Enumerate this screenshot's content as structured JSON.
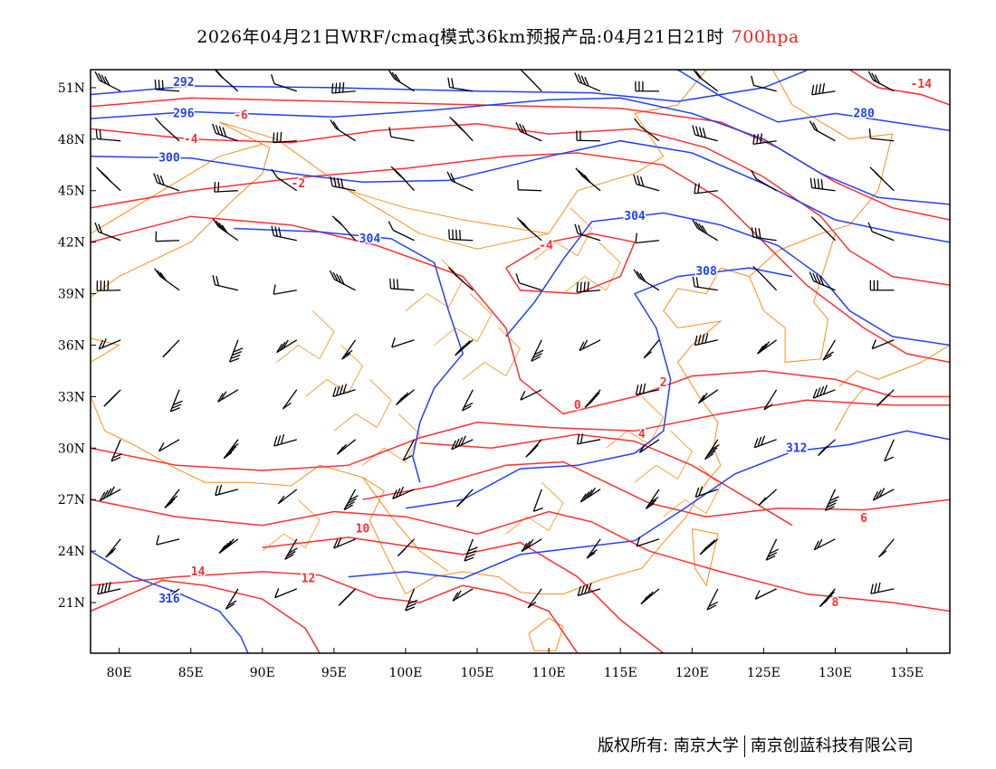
{
  "title": {
    "text": "2026年04月21日WRF/cmaq模式36km预报产品:04月21日21时",
    "level": "700hpa"
  },
  "footer": {
    "left": "版权所有: 南京大学",
    "right": "南京创蓝科技有限公司"
  },
  "colors": {
    "temperature": "#ff3030",
    "height": "#2040ff",
    "border": "#ff8c1a",
    "barb": "#000000"
  },
  "axes": {
    "lon_ticks": [
      "80E",
      "85E",
      "90E",
      "95E",
      "100E",
      "105E",
      "110E",
      "115E",
      "120E",
      "125E",
      "130E",
      "135E"
    ],
    "lon_values": [
      80,
      85,
      90,
      95,
      100,
      105,
      110,
      115,
      120,
      125,
      130,
      135
    ],
    "lat_ticks": [
      "51N",
      "48N",
      "45N",
      "42N",
      "39N",
      "36N",
      "33N",
      "30N",
      "27N",
      "24N",
      "21N"
    ],
    "lat_values": [
      51,
      48,
      45,
      42,
      39,
      36,
      33,
      30,
      27,
      24,
      21
    ],
    "lon_range": [
      78,
      138
    ],
    "lat_range": [
      18.05,
      52.05
    ]
  },
  "chart_data": {
    "type": "contour-map",
    "height_contours": [
      {
        "label": "292",
        "points": [
          [
            78,
            50.6
          ],
          [
            85,
            51.1
          ],
          [
            95,
            51
          ],
          [
            105,
            50.8
          ],
          [
            113,
            50.7
          ],
          [
            119,
            50.2
          ],
          [
            125,
            51
          ],
          [
            128,
            52
          ]
        ],
        "label_at": [
          84.5,
          51.3
        ]
      },
      {
        "label": "296",
        "points": [
          [
            78,
            49.2
          ],
          [
            85,
            49.6
          ],
          [
            95,
            49.3
          ],
          [
            102,
            49.7
          ],
          [
            110,
            50.3
          ],
          [
            115,
            50.4
          ],
          [
            120,
            49.5
          ],
          [
            125,
            48
          ],
          [
            129,
            46
          ],
          [
            133,
            44.6
          ],
          [
            138,
            44.2
          ]
        ],
        "label_at": [
          84.5,
          49.5
        ]
      },
      {
        "label": "300",
        "points": [
          [
            78,
            47
          ],
          [
            85,
            46.9
          ],
          [
            92,
            46
          ],
          [
            97,
            45.5
          ],
          [
            103,
            45.6
          ],
          [
            110,
            47
          ],
          [
            115,
            47.9
          ],
          [
            120,
            47.2
          ],
          [
            125,
            45.4
          ],
          [
            130,
            43.3
          ],
          [
            134,
            42.6
          ],
          [
            138,
            42
          ]
        ],
        "label_at": [
          83.5,
          46.9
        ]
      },
      {
        "label": "304",
        "points": [
          [
            88,
            42.8
          ],
          [
            94,
            42.6
          ],
          [
            99,
            42.2
          ],
          [
            102,
            40.8
          ],
          [
            103,
            38
          ],
          [
            104,
            35.5
          ],
          [
            102,
            33.5
          ],
          [
            101,
            31.5
          ],
          [
            100.5,
            29.5
          ],
          [
            101,
            28
          ]
        ],
        "label_at": [
          97.5,
          42.2
        ]
      },
      {
        "label": "304",
        "points": [
          [
            107,
            36.5
          ],
          [
            109,
            38.5
          ],
          [
            111,
            41
          ],
          [
            113,
            43.2
          ],
          [
            118,
            43.7
          ],
          [
            122,
            43
          ],
          [
            126,
            41.8
          ],
          [
            129,
            40
          ],
          [
            131,
            38
          ],
          [
            134,
            36.5
          ],
          [
            138,
            36
          ]
        ],
        "label_at": [
          116,
          43.5
        ]
      },
      {
        "label": "308",
        "points": [
          [
            100,
            26.5
          ],
          [
            104,
            27
          ],
          [
            108,
            28.8
          ],
          [
            112,
            29
          ],
          [
            116,
            29.7
          ],
          [
            118,
            31
          ],
          [
            118.5,
            34
          ],
          [
            117.5,
            37
          ],
          [
            116,
            39
          ],
          [
            119,
            40
          ],
          [
            124,
            40.5
          ],
          [
            127,
            40
          ]
        ],
        "label_at": [
          121,
          40.3
        ]
      },
      {
        "label": "312",
        "points": [
          [
            96,
            22.5
          ],
          [
            100,
            22.8
          ],
          [
            104,
            22.4
          ],
          [
            108,
            23.8
          ],
          [
            112,
            24.2
          ],
          [
            116,
            24.6
          ],
          [
            119.5,
            26.5
          ],
          [
            123,
            28.5
          ],
          [
            127,
            29.8
          ],
          [
            131,
            30.2
          ],
          [
            135,
            31
          ],
          [
            138,
            30.5
          ]
        ],
        "label_at": [
          127.3,
          30
        ]
      },
      {
        "label": "316",
        "points": [
          [
            78,
            24
          ],
          [
            81,
            22.5
          ],
          [
            84,
            21.6
          ],
          [
            87,
            20.5
          ],
          [
            88.5,
            19
          ],
          [
            89,
            18.05
          ]
        ],
        "label_at": [
          83.5,
          21.2
        ]
      },
      {
        "label": "280",
        "points": [
          [
            119,
            52.05
          ],
          [
            122,
            50.5
          ],
          [
            126,
            49
          ],
          [
            130,
            49.5
          ],
          [
            134,
            49
          ],
          [
            138,
            48.5
          ]
        ],
        "label_at": [
          132,
          49.5
        ]
      }
    ],
    "temperature_contours": [
      {
        "label": "-14",
        "points": [
          [
            131,
            52.05
          ],
          [
            133,
            51
          ],
          [
            136,
            50.6
          ],
          [
            138,
            50
          ]
        ],
        "label_at": [
          136,
          51.2
        ]
      },
      {
        "label": "-6",
        "points": [
          [
            78,
            49.9
          ],
          [
            85,
            50.4
          ],
          [
            95,
            50.2
          ],
          [
            105,
            50
          ],
          [
            115,
            49.8
          ],
          [
            122,
            49
          ],
          [
            126,
            47.5
          ],
          [
            130,
            45.5
          ],
          [
            134,
            44
          ],
          [
            138,
            43.3
          ]
        ],
        "label_at": [
          88.5,
          49.4
        ]
      },
      {
        "label": "-4",
        "points": [
          [
            78,
            48.6
          ],
          [
            85,
            48
          ],
          [
            92,
            47.8
          ],
          [
            98,
            48.5
          ],
          [
            105,
            48.9
          ],
          [
            110,
            48.3
          ],
          [
            116,
            48.6
          ],
          [
            121,
            47.5
          ],
          [
            125,
            45.8
          ],
          [
            129,
            43.5
          ],
          [
            131,
            41.5
          ],
          [
            134,
            40
          ],
          [
            138,
            39.5
          ]
        ],
        "label_at": [
          85,
          48
        ]
      },
      {
        "label": "-2",
        "points": [
          [
            78,
            44
          ],
          [
            85,
            45
          ],
          [
            93,
            45.8
          ],
          [
            100,
            46.3
          ],
          [
            107,
            47
          ],
          [
            112,
            47.2
          ],
          [
            118,
            46.5
          ],
          [
            122,
            44.5
          ],
          [
            125,
            42
          ],
          [
            128,
            39.5
          ],
          [
            132,
            37
          ],
          [
            135,
            35.5
          ],
          [
            138,
            35
          ]
        ],
        "label_at": [
          92.5,
          45.4
        ]
      },
      {
        "label": "-4",
        "points": [
          [
            107,
            40.5
          ],
          [
            110,
            42
          ],
          [
            113,
            42.5
          ],
          [
            116,
            42
          ],
          [
            115,
            40
          ],
          [
            112,
            39
          ],
          [
            108,
            39.2
          ],
          [
            107,
            40.5
          ]
        ],
        "label_at": [
          109.8,
          41.8
        ]
      },
      {
        "label": "0",
        "points": [
          [
            78,
            42
          ],
          [
            85,
            43.5
          ],
          [
            92,
            43
          ],
          [
            98,
            41.8
          ],
          [
            104,
            40
          ],
          [
            107,
            37
          ],
          [
            108,
            34
          ],
          [
            111,
            32
          ],
          [
            116,
            33
          ],
          [
            120,
            34.2
          ],
          [
            125,
            34.5
          ],
          [
            130,
            34
          ],
          [
            134,
            33
          ],
          [
            138,
            33
          ]
        ],
        "label_at": [
          112,
          32.5
        ]
      },
      {
        "label": "2",
        "points": [
          [
            78,
            30
          ],
          [
            84,
            29
          ],
          [
            90,
            28.7
          ],
          [
            96,
            29
          ],
          [
            101,
            30.6
          ],
          [
            105,
            31.5
          ],
          [
            110,
            31.2
          ],
          [
            116,
            31
          ],
          [
            122,
            32
          ],
          [
            128,
            32.8
          ],
          [
            134,
            32.5
          ],
          [
            138,
            32.5
          ]
        ],
        "label_at": [
          118,
          33.8
        ]
      },
      {
        "label": "4",
        "points": [
          [
            101,
            30.3
          ],
          [
            106,
            30
          ],
          [
            112,
            30.8
          ],
          [
            116,
            30.4
          ],
          [
            120,
            29
          ],
          [
            124,
            27
          ],
          [
            127,
            25.5
          ]
        ],
        "label_at": [
          116.5,
          30.8
        ]
      },
      {
        "label": "6",
        "points": [
          [
            97,
            27
          ],
          [
            102,
            27.8
          ],
          [
            107,
            29
          ],
          [
            111,
            29.2
          ],
          [
            114,
            28
          ],
          [
            117,
            26.8
          ],
          [
            121,
            26
          ],
          [
            126,
            26.5
          ],
          [
            132,
            26.4
          ],
          [
            138,
            27
          ]
        ],
        "label_at": [
          132,
          25.9
        ]
      },
      {
        "label": "8",
        "points": [
          [
            78,
            27
          ],
          [
            84,
            26
          ],
          [
            90,
            25.5
          ],
          [
            95,
            26.3
          ],
          [
            100,
            26
          ],
          [
            105,
            25
          ],
          [
            110,
            26.3
          ],
          [
            113,
            25.7
          ],
          [
            117,
            24
          ],
          [
            122,
            22.8
          ],
          [
            128,
            21.5
          ],
          [
            134,
            21
          ],
          [
            138,
            20.5
          ]
        ],
        "label_at": [
          130,
          21
        ]
      },
      {
        "label": "10",
        "points": [
          [
            90,
            24.2
          ],
          [
            96,
            24.8
          ],
          [
            100,
            24.3
          ],
          [
            104,
            23.8
          ],
          [
            108,
            24.5
          ],
          [
            112,
            22.5
          ],
          [
            115,
            20
          ],
          [
            118,
            18.05
          ]
        ],
        "label_at": [
          97,
          25.3
        ]
      },
      {
        "label": "12",
        "points": [
          [
            78,
            22
          ],
          [
            84,
            22.5
          ],
          [
            90,
            22.8
          ],
          [
            94,
            22.6
          ],
          [
            98,
            21.3
          ],
          [
            101,
            21
          ],
          [
            104,
            22
          ],
          [
            107,
            21.5
          ],
          [
            110,
            20.5
          ],
          [
            112,
            18.05
          ]
        ],
        "label_at": [
          93.2,
          22.4
        ]
      },
      {
        "label": "14",
        "points": [
          [
            78,
            20.5
          ],
          [
            83,
            22.3
          ],
          [
            86,
            22
          ],
          [
            90,
            21.2
          ],
          [
            93,
            19.5
          ],
          [
            94,
            18.05
          ]
        ],
        "label_at": [
          85.5,
          22.8
        ]
      }
    ],
    "barbs": "700hPa wind barbs over domain"
  }
}
